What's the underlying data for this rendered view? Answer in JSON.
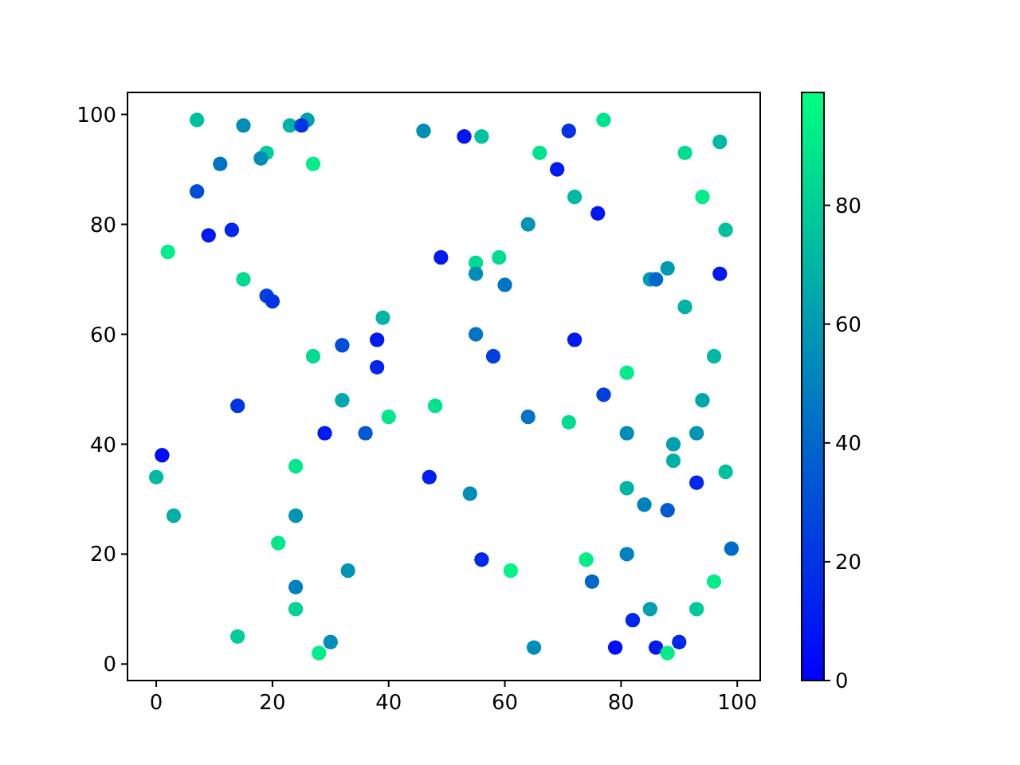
{
  "chart_data": {
    "type": "scatter",
    "marker": "circle",
    "xlim": [
      -4.95,
      103.95
    ],
    "ylim": [
      -3,
      104
    ],
    "xticks": [
      0,
      20,
      40,
      60,
      80,
      100
    ],
    "yticks": [
      0,
      20,
      40,
      60,
      80,
      100
    ],
    "clim": [
      0,
      99
    ],
    "cticks": [
      0,
      20,
      40,
      60,
      80
    ],
    "x": [
      7,
      15,
      23,
      26,
      25,
      19,
      18,
      27,
      11,
      7,
      9,
      13,
      2,
      15,
      19,
      20,
      39,
      27,
      32,
      38,
      38,
      46,
      53,
      56,
      71,
      77,
      66,
      69,
      91,
      97,
      72,
      76,
      94,
      98,
      64,
      49,
      55,
      59,
      55,
      60,
      88,
      85,
      86,
      97,
      91,
      55,
      58,
      72,
      96,
      81,
      14,
      32,
      40,
      29,
      36,
      1,
      0,
      24,
      3,
      24,
      21,
      33,
      24,
      24,
      14,
      28,
      30,
      77,
      94,
      48,
      64,
      71,
      81,
      93,
      89,
      89,
      98,
      93,
      47,
      54,
      81,
      84,
      88,
      56,
      61,
      74,
      81,
      75,
      99,
      96,
      85,
      93,
      82,
      65,
      79,
      86,
      90,
      88
    ],
    "values": [
      99,
      98,
      98,
      99,
      98,
      93,
      92,
      91,
      91,
      86,
      78,
      79,
      75,
      70,
      67,
      66,
      63,
      56,
      58,
      59,
      54,
      97,
      96,
      96,
      97,
      99,
      93,
      90,
      93,
      95,
      85,
      82,
      85,
      79,
      80,
      74,
      73,
      74,
      71,
      69,
      72,
      70,
      70,
      71,
      65,
      60,
      56,
      59,
      56,
      53,
      47,
      48,
      45,
      42,
      42,
      38,
      34,
      36,
      27,
      27,
      22,
      17,
      14,
      10,
      5,
      2,
      4,
      49,
      48,
      47,
      45,
      44,
      42,
      42,
      40,
      37,
      35,
      33,
      34,
      31,
      32,
      29,
      28,
      19,
      17,
      19,
      20,
      15,
      21,
      15,
      10,
      10,
      8,
      3,
      3,
      3,
      4,
      2
    ],
    "cvalues": [
      75,
      55,
      70,
      62,
      20,
      80,
      55,
      92,
      45,
      30,
      10,
      15,
      92,
      85,
      25,
      20,
      70,
      85,
      30,
      10,
      15,
      55,
      8,
      75,
      20,
      88,
      88,
      10,
      85,
      72,
      72,
      8,
      92,
      75,
      58,
      10,
      85,
      85,
      55,
      45,
      60,
      60,
      40,
      10,
      70,
      45,
      25,
      10,
      72,
      92,
      20,
      65,
      90,
      10,
      35,
      5,
      72,
      90,
      68,
      58,
      90,
      58,
      50,
      82,
      80,
      92,
      55,
      25,
      65,
      88,
      45,
      85,
      55,
      58,
      62,
      68,
      75,
      15,
      12,
      55,
      70,
      50,
      35,
      15,
      95,
      92,
      50,
      40,
      42,
      92,
      62,
      78,
      15,
      55,
      5,
      10,
      15,
      92
    ]
  }
}
